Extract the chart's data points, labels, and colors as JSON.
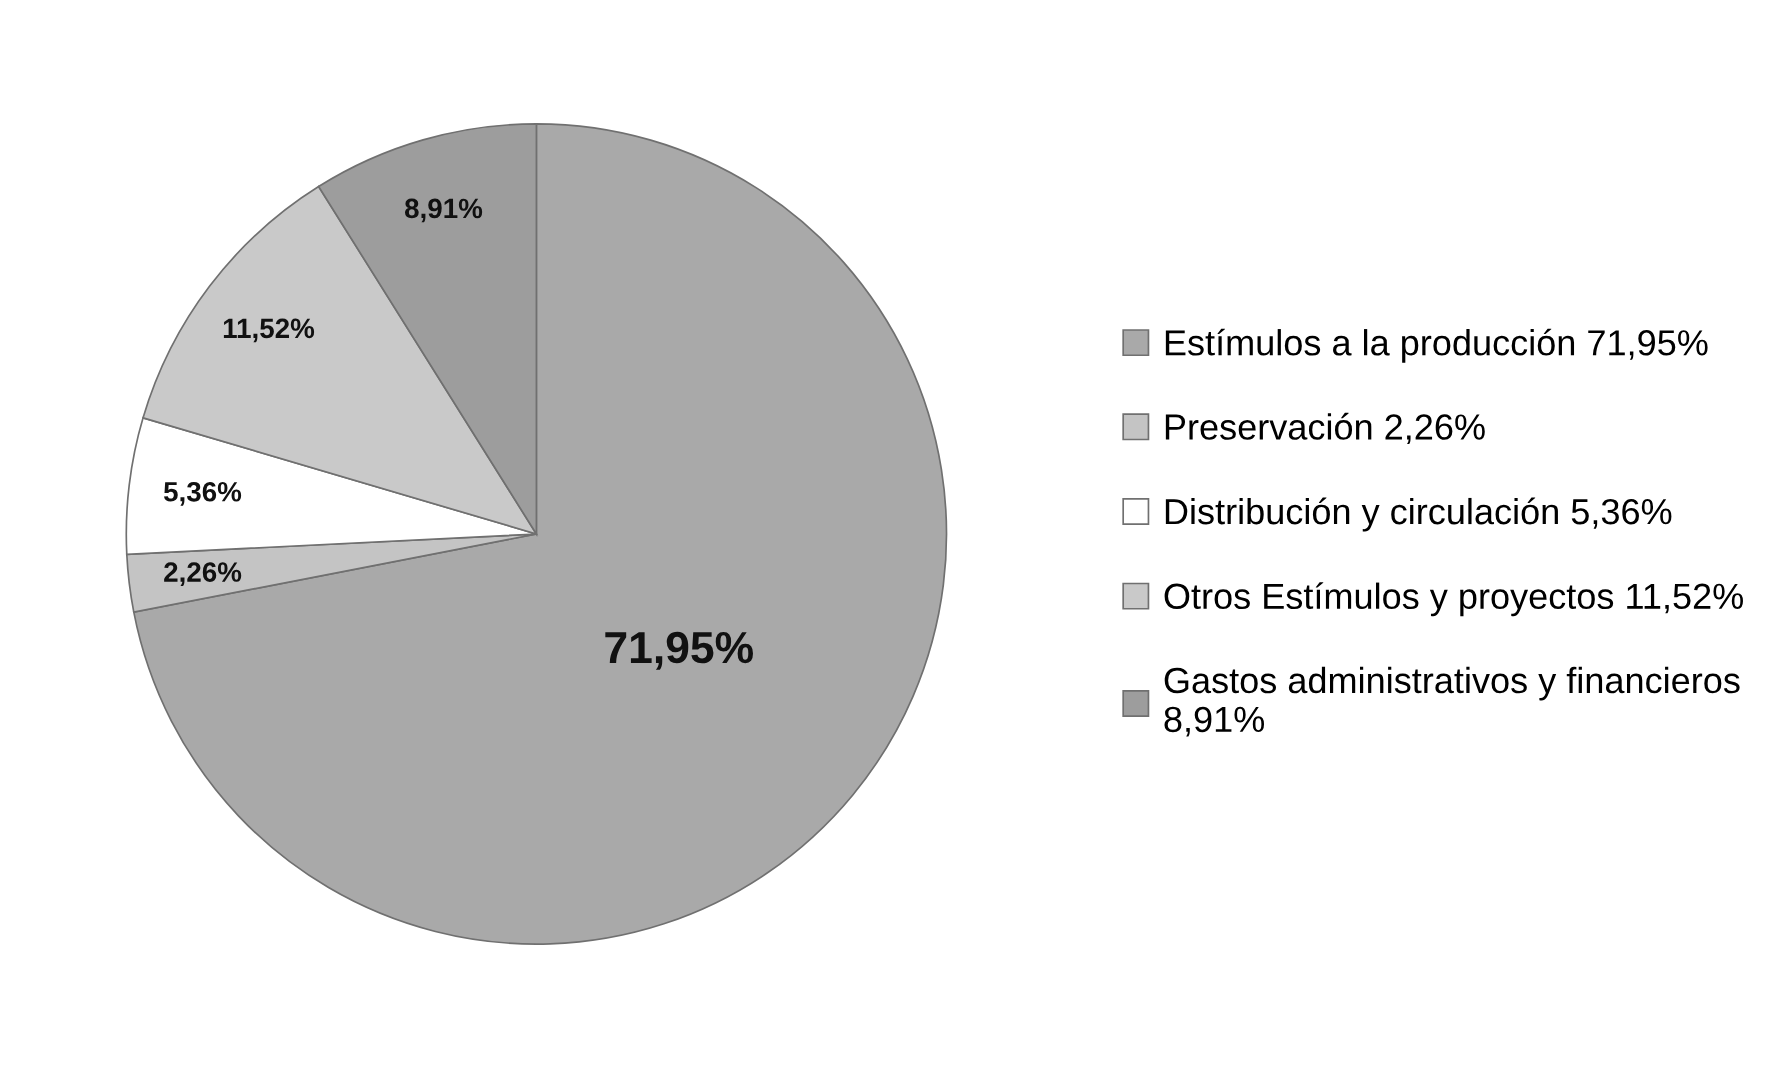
{
  "chart_data": {
    "type": "pie",
    "categories": [
      "Estímulos a la producción",
      "Preservación",
      "Distribución y circulación",
      "Otros Estímulos y proyectos",
      "Gastos administrativos y financieros"
    ],
    "values": [
      71.95,
      2.26,
      5.36,
      11.52,
      8.91
    ],
    "value_labels": [
      "71,95%",
      "2,26%",
      "5,36%",
      "11,52%",
      "8,91%"
    ],
    "colors": [
      "#a9a9a9",
      "#c4c4c4",
      "#ffffff",
      "#c9c9c9",
      "#9d9d9d"
    ],
    "legend": "right"
  }
}
